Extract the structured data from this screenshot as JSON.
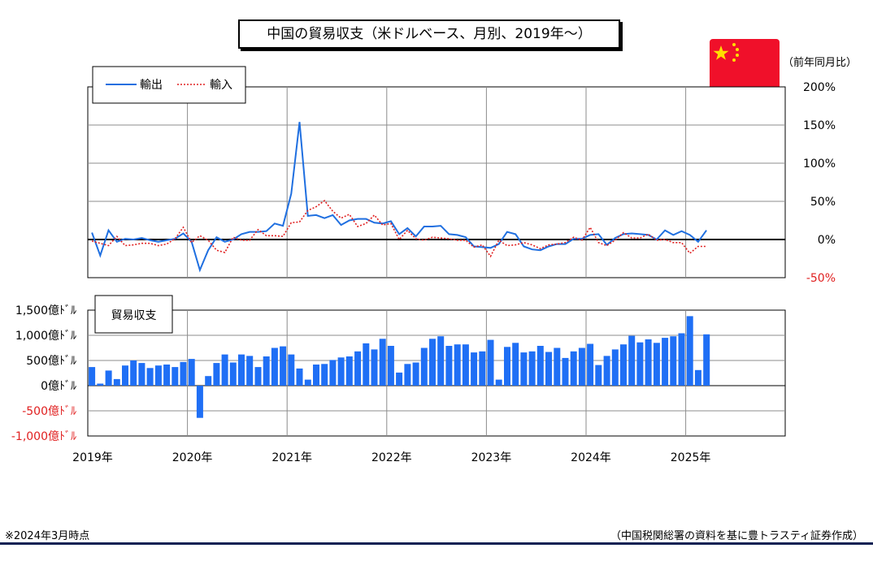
{
  "title": "中国の貿易収支（米ドルベース、月別、2019年〜）",
  "unit_label": "（前年同月比）",
  "footnote": "※2024年3月時点",
  "source": "（中国税関総署の資料を基に豊トラスティ証券作成）",
  "colors": {
    "export": "#1f6fe0",
    "import": "#e02020",
    "bar": "#1f6ff5",
    "negative_text": "#e02020",
    "rule": "#0d2153"
  },
  "chart_data": [
    {
      "type": "line",
      "ylim": [
        -50,
        200
      ],
      "y_ticks": [
        "200%",
        "150%",
        "100%",
        "50%",
        "0%",
        "-50%"
      ],
      "x_tick_labels": [
        "2019年",
        "2020年",
        "2021年",
        "2022年",
        "2023年",
        "2024年",
        "2025年"
      ],
      "grid": true,
      "legend": "top-left",
      "x_start": "2019-01",
      "series": [
        {
          "name": "輸出",
          "style": "solid",
          "values": [
            9,
            -21,
            12,
            -3,
            1,
            0,
            2,
            -1,
            -3,
            -1,
            1,
            8,
            -3,
            -40,
            -14,
            3,
            -3,
            0,
            7,
            10,
            10,
            11,
            21,
            18,
            60,
            154,
            31,
            32,
            28,
            32,
            19,
            25,
            27,
            27,
            22,
            21,
            24,
            7,
            15,
            4,
            17,
            17,
            18,
            7,
            6,
            3,
            -9,
            -10,
            -11,
            -6,
            10,
            7,
            -9,
            -13,
            -14,
            -9,
            -6,
            -6,
            1,
            1,
            6,
            7,
            -7,
            2,
            7,
            8,
            7,
            6,
            0,
            12,
            6,
            11,
            6,
            -3,
            12
          ],
          "note": "values in %; 2019-01 through 2025-03"
        },
        {
          "name": "輸入",
          "style": "dotted",
          "values": [
            -2,
            -5,
            -8,
            4,
            -8,
            -7,
            -5,
            -5,
            -8,
            -6,
            1,
            16,
            -4,
            5,
            -1,
            -14,
            -17,
            3,
            -1,
            -1,
            13,
            5,
            5,
            4,
            22,
            23,
            38,
            43,
            51,
            37,
            28,
            33,
            17,
            21,
            32,
            19,
            21,
            0,
            12,
            1,
            -1,
            3,
            2,
            1,
            -1,
            -1,
            -10,
            -7,
            -22,
            -1,
            -8,
            -7,
            -4,
            -7,
            -12,
            -7,
            -6,
            -4,
            3,
            -1,
            16,
            -4,
            -8,
            -1,
            9,
            2,
            2,
            7,
            -1,
            0,
            -4,
            -4,
            -18,
            -9,
            -9
          ],
          "note": "values in %"
        }
      ]
    },
    {
      "type": "bar",
      "ylim": [
        -1000,
        1500
      ],
      "y_ticks": [
        "1,500億ﾄﾞﾙ",
        "1,000億ﾄﾞﾙ",
        "500億ﾄﾞﾙ",
        "0億ﾄﾞﾙ",
        "-500億ﾄﾞﾙ",
        "-1,000億ﾄﾞﾙ"
      ],
      "series_label": "貿易収支",
      "values": [
        370,
        40,
        300,
        130,
        400,
        500,
        450,
        350,
        400,
        420,
        370,
        470,
        530,
        -640,
        190,
        450,
        620,
        460,
        620,
        590,
        370,
        580,
        750,
        780,
        620,
        340,
        120,
        420,
        430,
        510,
        560,
        580,
        680,
        840,
        720,
        930,
        790,
        260,
        430,
        460,
        750,
        930,
        980,
        790,
        820,
        820,
        660,
        680,
        910,
        120,
        770,
        850,
        660,
        680,
        790,
        670,
        750,
        550,
        680,
        750,
        830,
        410,
        590,
        720,
        820,
        990,
        860,
        920,
        850,
        950,
        980,
        1040,
        1380,
        310,
        1020
      ],
      "note": "values in 億ドル; 2019-01 through 2025-03"
    }
  ]
}
